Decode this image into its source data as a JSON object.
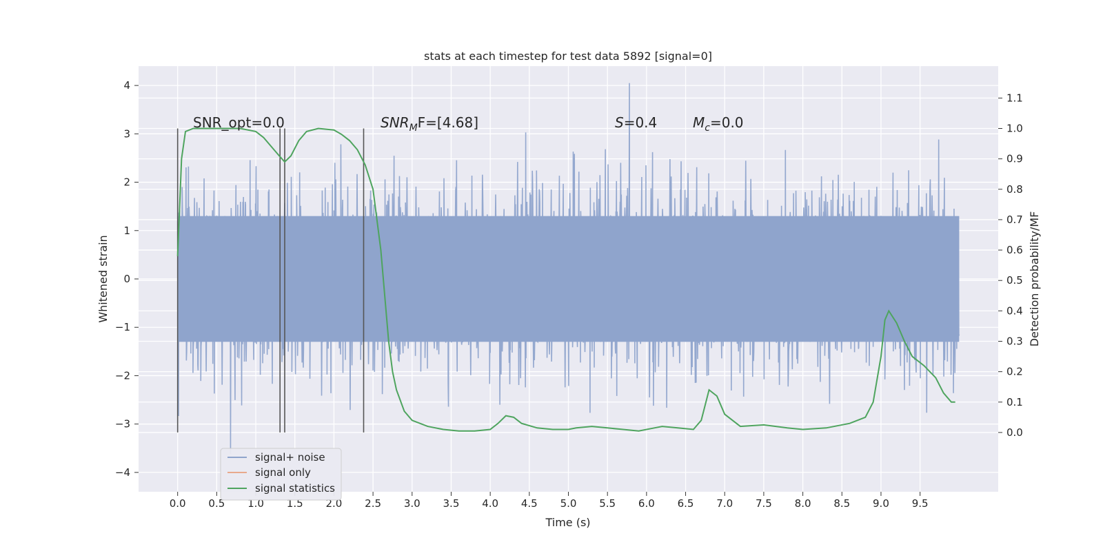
{
  "chart_data": {
    "type": "line",
    "title": "stats at each timestep for test data 5892 [signal=0]",
    "xlabel": "Time (s)",
    "ylabel": "Whitened strain",
    "ylabel_right": "Detection probability/MF",
    "xlim": [
      -0.5,
      10.5
    ],
    "ylim": [
      -4.4,
      4.4
    ],
    "ylim_right": [
      -0.195,
      1.205
    ],
    "x_ticks": [
      0.0,
      0.5,
      1.0,
      1.5,
      2.0,
      2.5,
      3.0,
      3.5,
      4.0,
      4.5,
      5.0,
      5.5,
      6.0,
      6.5,
      7.0,
      7.5,
      8.0,
      8.5,
      9.0,
      9.5
    ],
    "x_tick_labels": [
      "0.0",
      "0.5",
      "1.0",
      "1.5",
      "2.0",
      "2.5",
      "3.0",
      "3.5",
      "4.0",
      "4.5",
      "5.0",
      "5.5",
      "6.0",
      "6.5",
      "7.0",
      "7.5",
      "8.0",
      "8.5",
      "9.0",
      "9.5"
    ],
    "y_ticks": [
      4,
      3,
      2,
      1,
      0,
      -1,
      -2,
      -3,
      -4
    ],
    "y_tick_labels": [
      "4",
      "3",
      "2",
      "1",
      "0",
      "−1",
      "−2",
      "−3",
      "−4"
    ],
    "y_ticks_right": [
      1.1,
      1.0,
      0.9,
      0.8,
      0.7,
      0.6,
      0.5,
      0.4,
      0.3,
      0.2,
      0.1,
      0.0
    ],
    "y_tick_labels_right": [
      "1.1",
      "1.0",
      "0.9",
      "0.8",
      "0.7",
      "0.6",
      "0.5",
      "0.4",
      "0.3",
      "0.2",
      "0.1",
      "0.0"
    ],
    "grid": true,
    "legend_position": "lower-left",
    "annotations": {
      "snr_opt": "SNR_opt=0.0",
      "snr_mf_base": "SNR",
      "snr_mf_sub": "M",
      "snr_mf_rest": "F=[4.68]",
      "s_var": "S",
      "s_val": "=0.4",
      "mc_var": "M",
      "mc_sub": "c",
      "mc_val": "=0.0"
    },
    "vertical_markers": [
      0.0,
      1.31,
      1.37,
      2.38
    ],
    "series": [
      {
        "name": "signal+ noise",
        "color": "#8fa4cc",
        "axis": "left",
        "summary": {
          "x_start": 0.0,
          "x_end": 10.0,
          "band_abs": 1.3,
          "max": 4.05,
          "min": -4.05
        }
      },
      {
        "name": "signal only",
        "color": "#e8a98c",
        "axis": "left",
        "x": [],
        "y": []
      },
      {
        "name": "signal statistics",
        "color": "#4ea45e",
        "axis": "right",
        "x": [
          0.0,
          0.05,
          0.1,
          0.2,
          0.3,
          0.5,
          0.8,
          1.0,
          1.1,
          1.2,
          1.3,
          1.37,
          1.45,
          1.55,
          1.65,
          1.8,
          2.0,
          2.1,
          2.2,
          2.3,
          2.4,
          2.5,
          2.6,
          2.7,
          2.75,
          2.8,
          2.9,
          3.0,
          3.2,
          3.4,
          3.6,
          3.8,
          4.0,
          4.1,
          4.2,
          4.3,
          4.4,
          4.6,
          4.8,
          5.0,
          5.1,
          5.3,
          5.5,
          5.7,
          5.9,
          6.1,
          6.2,
          6.4,
          6.6,
          6.7,
          6.8,
          6.9,
          7.0,
          7.2,
          7.5,
          7.8,
          8.0,
          8.3,
          8.6,
          8.8,
          8.9,
          9.0,
          9.05,
          9.1,
          9.2,
          9.3,
          9.4,
          9.55,
          9.7,
          9.8,
          9.9,
          9.95
        ],
        "y": [
          0.58,
          0.9,
          0.99,
          1.0,
          1.0,
          1.0,
          1.0,
          0.99,
          0.97,
          0.94,
          0.91,
          0.89,
          0.91,
          0.96,
          0.99,
          1.0,
          0.995,
          0.98,
          0.96,
          0.93,
          0.88,
          0.8,
          0.6,
          0.3,
          0.2,
          0.14,
          0.07,
          0.04,
          0.02,
          0.01,
          0.005,
          0.005,
          0.01,
          0.03,
          0.055,
          0.05,
          0.03,
          0.015,
          0.01,
          0.01,
          0.015,
          0.02,
          0.015,
          0.01,
          0.005,
          0.015,
          0.02,
          0.015,
          0.01,
          0.04,
          0.14,
          0.12,
          0.06,
          0.02,
          0.025,
          0.015,
          0.01,
          0.015,
          0.03,
          0.05,
          0.1,
          0.25,
          0.37,
          0.4,
          0.36,
          0.3,
          0.25,
          0.22,
          0.18,
          0.13,
          0.1,
          0.1
        ]
      }
    ]
  }
}
